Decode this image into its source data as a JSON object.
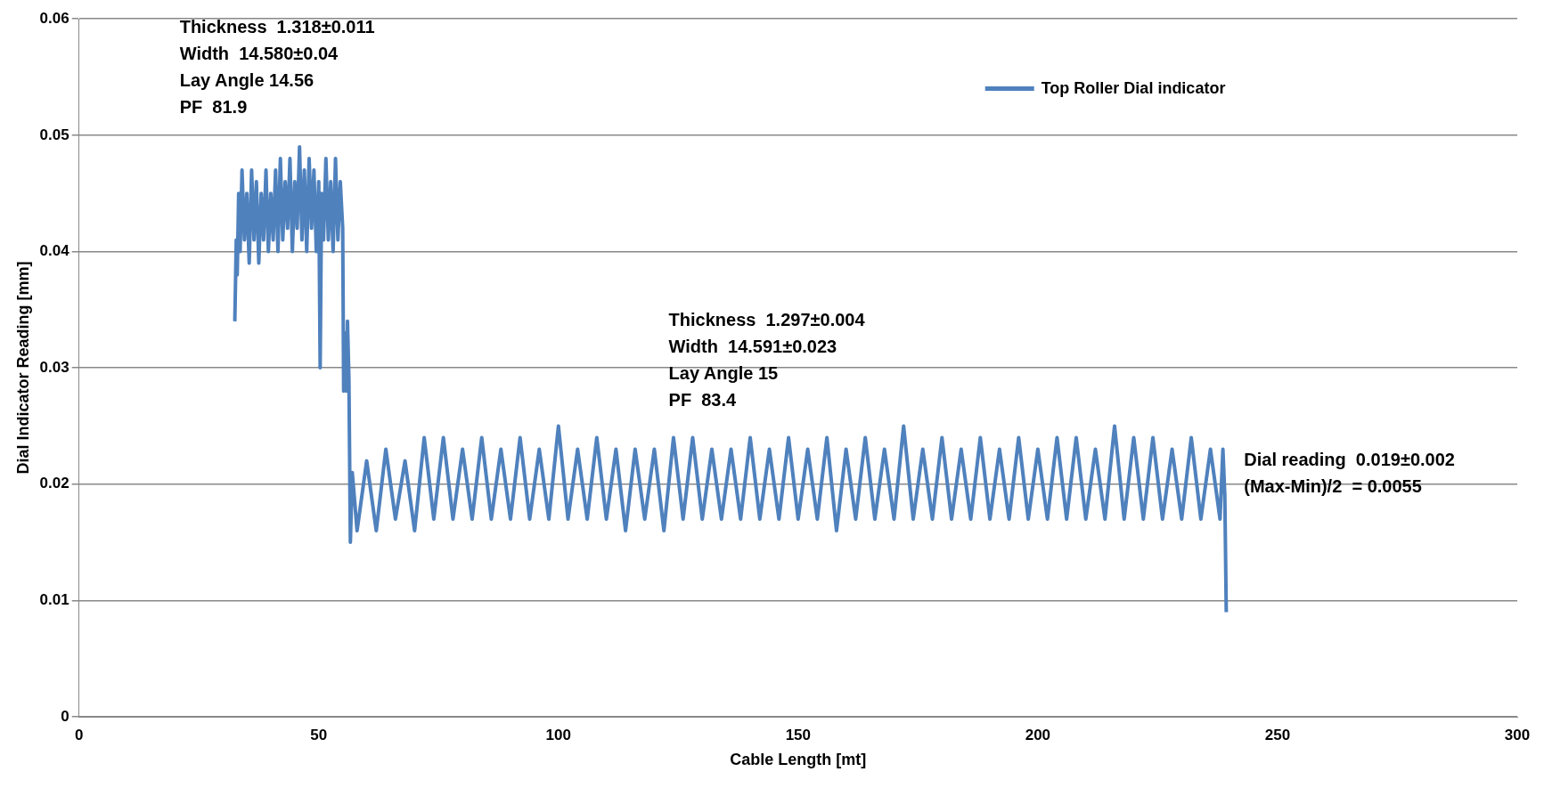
{
  "chart_data": {
    "type": "line",
    "xlabel": "Cable Length [mt]",
    "ylabel": "Dial Indicator Reading [mm]",
    "xlim": [
      0,
      300
    ],
    "xticks": [
      0,
      50,
      100,
      150,
      200,
      250,
      300
    ],
    "ylim": [
      0,
      0.06
    ],
    "yticks": [
      0,
      0.01,
      0.02,
      0.03,
      0.04,
      0.05,
      0.06
    ],
    "grid": "y",
    "legend": "top right",
    "marker": "none",
    "annotations": [
      "Thickness  1.318±0.011\nWidth  14.580±0.04\nLay Angle 14.56\nPF  81.9",
      "Thickness  1.297±0.004\nWidth  14.591±0.023\nLay Angle 15\nPF  83.4",
      "Dial reading  0.019±0.002\n(Max-Min)/2  = 0.0055"
    ],
    "series": [
      {
        "name": "Top Roller Dial indicator",
        "color": "#4f81bd",
        "x": [
          32.5,
          32.8,
          33,
          33.3,
          33.6,
          34,
          34.5,
          35,
          35.5,
          36,
          36.5,
          37,
          37.5,
          38,
          38.5,
          39,
          39.5,
          40,
          40.5,
          41,
          41.5,
          42,
          42.5,
          43,
          43.5,
          44,
          44.5,
          45,
          45.5,
          46,
          46.5,
          47,
          47.5,
          48,
          48.5,
          49,
          49.5,
          50,
          50.3,
          50.6,
          51,
          51.5,
          52,
          52.5,
          53,
          53.5,
          54,
          54.5,
          55,
          55.2,
          55.5,
          55.8,
          56,
          56.3,
          56.6,
          57,
          58,
          60,
          62,
          64,
          66,
          68,
          70,
          72,
          74,
          76,
          78,
          80,
          82,
          84,
          86,
          88,
          90,
          92,
          94,
          96,
          98,
          100,
          102,
          104,
          106,
          108,
          110,
          112,
          114,
          116,
          118,
          120,
          122,
          124,
          126,
          128,
          130,
          132,
          134,
          136,
          138,
          140,
          142,
          144,
          146,
          148,
          150,
          152,
          154,
          156,
          158,
          160,
          162,
          164,
          166,
          168,
          170,
          172,
          174,
          176,
          178,
          180,
          182,
          184,
          186,
          188,
          190,
          192,
          194,
          196,
          198,
          200,
          202,
          204,
          206,
          208,
          210,
          212,
          214,
          216,
          218,
          220,
          222,
          224,
          226,
          228,
          230,
          232,
          234,
          236,
          238,
          238.6,
          239,
          239.3
        ],
        "values": [
          0.034,
          0.041,
          0.038,
          0.045,
          0.04,
          0.047,
          0.041,
          0.045,
          0.039,
          0.047,
          0.041,
          0.046,
          0.039,
          0.045,
          0.041,
          0.047,
          0.04,
          0.045,
          0.041,
          0.047,
          0.04,
          0.048,
          0.041,
          0.046,
          0.042,
          0.048,
          0.04,
          0.046,
          0.042,
          0.049,
          0.041,
          0.047,
          0.04,
          0.048,
          0.042,
          0.047,
          0.04,
          0.046,
          0.03,
          0.045,
          0.041,
          0.048,
          0.041,
          0.046,
          0.04,
          0.048,
          0.041,
          0.046,
          0.042,
          0.028,
          0.033,
          0.028,
          0.034,
          0.029,
          0.015,
          0.021,
          0.016,
          0.022,
          0.016,
          0.023,
          0.017,
          0.022,
          0.016,
          0.024,
          0.017,
          0.024,
          0.017,
          0.023,
          0.017,
          0.024,
          0.017,
          0.023,
          0.017,
          0.024,
          0.017,
          0.023,
          0.017,
          0.025,
          0.017,
          0.023,
          0.017,
          0.024,
          0.017,
          0.023,
          0.016,
          0.023,
          0.017,
          0.023,
          0.016,
          0.024,
          0.017,
          0.024,
          0.017,
          0.023,
          0.017,
          0.023,
          0.017,
          0.024,
          0.017,
          0.023,
          0.017,
          0.024,
          0.017,
          0.023,
          0.017,
          0.024,
          0.016,
          0.023,
          0.017,
          0.024,
          0.017,
          0.023,
          0.017,
          0.025,
          0.017,
          0.023,
          0.017,
          0.024,
          0.017,
          0.023,
          0.017,
          0.024,
          0.017,
          0.023,
          0.017,
          0.024,
          0.017,
          0.023,
          0.017,
          0.024,
          0.017,
          0.024,
          0.017,
          0.023,
          0.017,
          0.025,
          0.017,
          0.024,
          0.017,
          0.024,
          0.017,
          0.023,
          0.017,
          0.024,
          0.017,
          0.023,
          0.017,
          0.023,
          0.019,
          0.009
        ]
      }
    ]
  }
}
